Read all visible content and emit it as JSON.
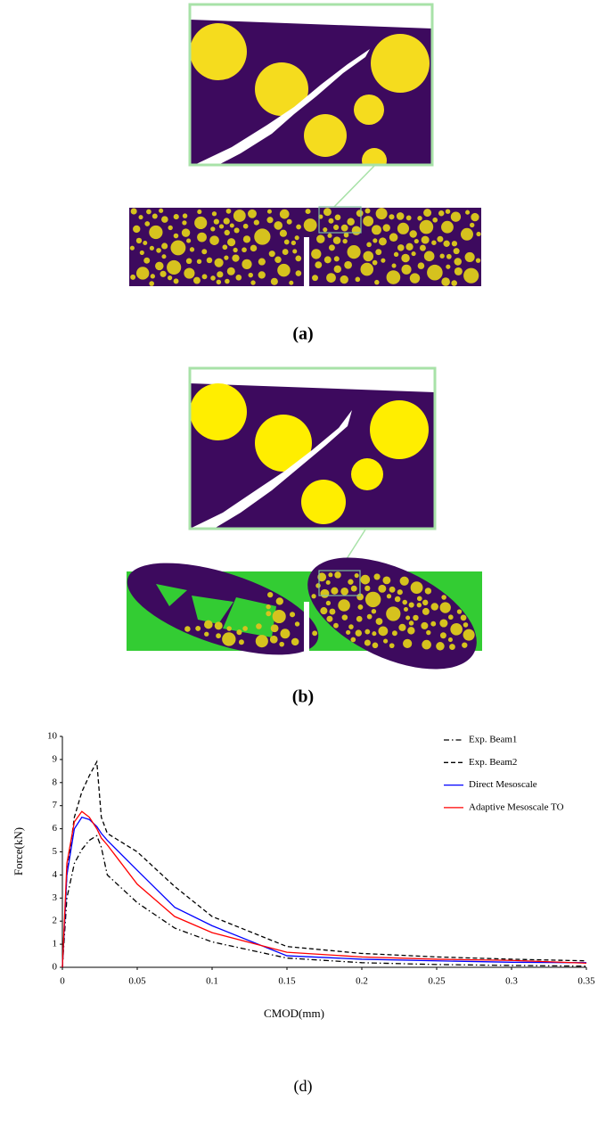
{
  "panel_labels": [
    "(a)",
    "(b)",
    "(d)"
  ],
  "chart_data": {
    "type": "line",
    "x_label": "CMOD(mm)",
    "y_label": "Force(kN)",
    "x": [
      0,
      0.003,
      0.008,
      0.013,
      0.018,
      0.023,
      0.026,
      0.03,
      0.05,
      0.075,
      0.1,
      0.15,
      0.2,
      0.25,
      0.3,
      0.35
    ],
    "series": [
      {
        "name": "Exp. Beam1",
        "color": "#000000",
        "line_style": "dashdot",
        "values": [
          0,
          3,
          4.5,
          5.1,
          5.5,
          5.7,
          5.2,
          4.0,
          2.8,
          1.7,
          1.1,
          0.4,
          0.2,
          0.12,
          0.08,
          0.05
        ]
      },
      {
        "name": "Exp. Beam2",
        "color": "#000000",
        "line_style": "dashed",
        "values": [
          0,
          4,
          6.5,
          7.6,
          8.3,
          8.9,
          6.5,
          5.8,
          5.0,
          3.5,
          2.2,
          0.9,
          0.6,
          0.45,
          0.35,
          0.28
        ]
      },
      {
        "name": "Direct Mesoscale",
        "color": "#0000ff",
        "line_style": "solid",
        "values": [
          0,
          4,
          6,
          6.5,
          6.4,
          6.1,
          5.8,
          5.5,
          4.2,
          2.6,
          1.8,
          0.5,
          0.35,
          0.28,
          0.22,
          0.2
        ]
      },
      {
        "name": "Adaptive Mesoscale TO",
        "color": "#ff0000",
        "line_style": "solid",
        "values": [
          0,
          4.5,
          6.3,
          6.75,
          6.5,
          6.0,
          5.6,
          5.3,
          3.6,
          2.2,
          1.5,
          0.65,
          0.45,
          0.35,
          0.3,
          0.18
        ]
      }
    ],
    "xlim": [
      0,
      0.35
    ],
    "xticks": [
      0,
      0.05,
      0.1,
      0.15,
      0.2,
      0.25,
      0.3,
      0.35
    ],
    "ylim": [
      0,
      10
    ],
    "yticks": [
      0,
      1,
      2,
      3,
      4,
      5,
      6,
      7,
      8,
      9,
      10
    ],
    "grid": false,
    "legend": "top-right"
  }
}
